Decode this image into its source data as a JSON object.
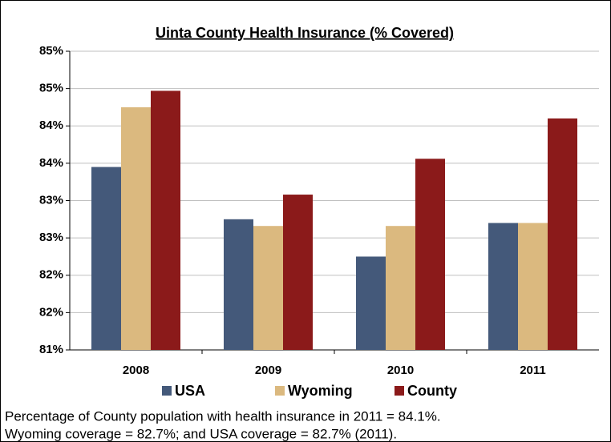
{
  "chart_data": {
    "type": "bar",
    "title": "Uinta County Health Insurance (% Covered)",
    "categories": [
      "2008",
      "2009",
      "2010",
      "2011"
    ],
    "series": [
      {
        "name": "USA",
        "color": "#44597a",
        "values": [
          83.45,
          82.75,
          82.25,
          82.7
        ]
      },
      {
        "name": "Wyoming",
        "color": "#dbb97f",
        "values": [
          84.25,
          82.66,
          82.66,
          82.7
        ]
      },
      {
        "name": "County",
        "color": "#8b1a1a",
        "values": [
          84.47,
          83.08,
          83.56,
          84.1
        ]
      }
    ],
    "ylim": [
      81,
      85
    ],
    "yticks": [
      {
        "value": 81,
        "label": "81%"
      },
      {
        "value": 81.5,
        "label": "82%"
      },
      {
        "value": 82,
        "label": "82%"
      },
      {
        "value": 82.5,
        "label": "83%"
      },
      {
        "value": 83,
        "label": "83%"
      },
      {
        "value": 83.5,
        "label": "84%"
      },
      {
        "value": 84,
        "label": "84%"
      },
      {
        "value": 84.5,
        "label": "85%"
      },
      {
        "value": 85,
        "label": "85%"
      }
    ],
    "grid": true,
    "legend": "bottom",
    "annotations": [
      "Percentage of County population with health insurance in 2011 = 84.1%.",
      "Wyoming coverage = 82.7%; and USA coverage = 82.7% (2011)."
    ]
  }
}
